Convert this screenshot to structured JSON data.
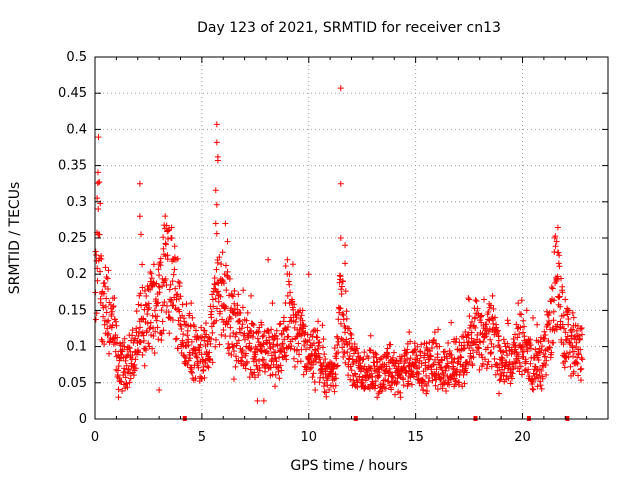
{
  "chart_data": {
    "type": "scatter",
    "title": "Day 123 of 2021, SRMTID for receiver cn13",
    "xlabel": "GPS time / hours",
    "ylabel": "SRMTID / TECUs",
    "xlim": [
      0,
      24
    ],
    "ylim": [
      0,
      0.5
    ],
    "xticks": [
      0,
      5,
      10,
      15,
      20
    ],
    "xtick_labels": [
      "0",
      "5",
      "10",
      "15",
      "20"
    ],
    "yticks": [
      0,
      0.05,
      0.1,
      0.15,
      0.2,
      0.25,
      0.3,
      0.35,
      0.4,
      0.45,
      0.5
    ],
    "ytick_labels": [
      "0",
      "0.05",
      "0.1",
      "0.15",
      "0.2",
      "0.25",
      "0.3",
      "0.35",
      "0.4",
      "0.45",
      "0.5"
    ],
    "grid": true,
    "marker_color": "#ff0000",
    "marker": "plus",
    "baseline_markers_x": [
      4.2,
      12.2,
      17.8,
      20.3,
      22.1
    ],
    "envelope_points": [
      [
        0.0,
        0.15
      ],
      [
        0.1,
        0.2
      ],
      [
        0.15,
        0.3
      ],
      [
        0.3,
        0.17
      ],
      [
        0.6,
        0.14
      ],
      [
        0.9,
        0.12
      ],
      [
        1.1,
        0.07
      ],
      [
        1.5,
        0.08
      ],
      [
        1.9,
        0.09
      ],
      [
        2.1,
        0.14
      ],
      [
        2.3,
        0.12
      ],
      [
        2.6,
        0.15
      ],
      [
        3.0,
        0.17
      ],
      [
        3.3,
        0.21
      ],
      [
        3.7,
        0.18
      ],
      [
        4.1,
        0.12
      ],
      [
        4.5,
        0.1
      ],
      [
        4.9,
        0.08
      ],
      [
        5.3,
        0.1
      ],
      [
        5.6,
        0.15
      ],
      [
        5.8,
        0.18
      ],
      [
        6.1,
        0.17
      ],
      [
        6.4,
        0.13
      ],
      [
        6.8,
        0.12
      ],
      [
        7.2,
        0.1
      ],
      [
        7.6,
        0.09
      ],
      [
        8.0,
        0.1
      ],
      [
        8.4,
        0.08
      ],
      [
        8.8,
        0.1
      ],
      [
        9.0,
        0.15
      ],
      [
        9.3,
        0.12
      ],
      [
        9.7,
        0.1
      ],
      [
        10.1,
        0.08
      ],
      [
        10.4,
        0.09
      ],
      [
        10.8,
        0.06
      ],
      [
        11.2,
        0.06
      ],
      [
        11.5,
        0.16
      ],
      [
        11.8,
        0.1
      ],
      [
        12.2,
        0.07
      ],
      [
        12.6,
        0.06
      ],
      [
        13.0,
        0.07
      ],
      [
        13.4,
        0.06
      ],
      [
        13.8,
        0.07
      ],
      [
        14.2,
        0.06
      ],
      [
        14.6,
        0.07
      ],
      [
        15.0,
        0.08
      ],
      [
        15.4,
        0.07
      ],
      [
        15.8,
        0.08
      ],
      [
        16.2,
        0.07
      ],
      [
        16.6,
        0.07
      ],
      [
        17.0,
        0.08
      ],
      [
        17.4,
        0.09
      ],
      [
        17.8,
        0.12
      ],
      [
        18.2,
        0.1
      ],
      [
        18.6,
        0.12
      ],
      [
        19.0,
        0.08
      ],
      [
        19.4,
        0.07
      ],
      [
        19.8,
        0.1
      ],
      [
        20.1,
        0.1
      ],
      [
        20.5,
        0.07
      ],
      [
        20.9,
        0.08
      ],
      [
        21.3,
        0.12
      ],
      [
        21.6,
        0.2
      ],
      [
        21.9,
        0.13
      ],
      [
        22.3,
        0.1
      ],
      [
        22.7,
        0.09
      ]
    ],
    "spikes": [
      [
        0.1,
        0.305
      ],
      [
        0.15,
        0.29
      ],
      [
        0.2,
        0.255
      ],
      [
        2.1,
        0.325
      ],
      [
        2.1,
        0.28
      ],
      [
        2.15,
        0.255
      ],
      [
        3.2,
        0.235
      ],
      [
        3.3,
        0.225
      ],
      [
        5.7,
        0.407
      ],
      [
        5.7,
        0.382
      ],
      [
        5.75,
        0.362
      ],
      [
        5.75,
        0.357
      ],
      [
        5.65,
        0.316
      ],
      [
        5.7,
        0.296
      ],
      [
        5.65,
        0.27
      ],
      [
        5.7,
        0.256
      ],
      [
        6.1,
        0.27
      ],
      [
        6.2,
        0.245
      ],
      [
        8.1,
        0.22
      ],
      [
        9.0,
        0.22
      ],
      [
        9.1,
        0.2
      ],
      [
        10.0,
        0.2
      ],
      [
        11.5,
        0.457
      ],
      [
        11.5,
        0.325
      ],
      [
        11.5,
        0.25
      ],
      [
        11.7,
        0.24
      ],
      [
        11.7,
        0.215
      ],
      [
        11.6,
        0.19
      ],
      [
        21.6,
        0.245
      ],
      [
        21.65,
        0.23
      ],
      [
        21.7,
        0.215
      ],
      [
        22.0,
        0.165
      ],
      [
        18.2,
        0.165
      ],
      [
        17.5,
        0.165
      ],
      [
        19.8,
        0.16
      ],
      [
        7.6,
        0.025
      ],
      [
        7.9,
        0.025
      ],
      [
        3.0,
        0.04
      ],
      [
        1.1,
        0.03
      ],
      [
        13.2,
        0.03
      ],
      [
        14.3,
        0.03
      ],
      [
        15.5,
        0.035
      ],
      [
        10.3,
        0.04
      ],
      [
        6.5,
        0.055
      ],
      [
        16.8,
        0.045
      ],
      [
        18.9,
        0.035
      ],
      [
        20.7,
        0.045
      ],
      [
        22.6,
        0.06
      ],
      [
        9.7,
        0.13
      ],
      [
        8.3,
        0.16
      ],
      [
        7.3,
        0.17
      ],
      [
        4.5,
        0.16
      ],
      [
        2.6,
        0.19
      ],
      [
        12.9,
        0.115
      ],
      [
        14.7,
        0.12
      ],
      [
        15.9,
        0.12
      ],
      [
        16.8,
        0.11
      ],
      [
        18.6,
        0.17
      ],
      [
        20.2,
        0.15
      ],
      [
        22.4,
        0.14
      ]
    ]
  }
}
